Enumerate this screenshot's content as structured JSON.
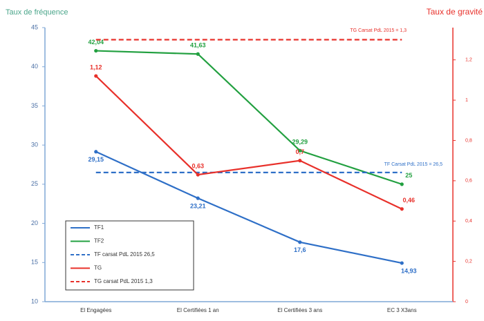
{
  "chart_data": {
    "type": "line",
    "ylabel": "Taux de fréquence",
    "y2label": "Taux de gravité",
    "categories": [
      "El Engagées",
      "El Certifiées 1 an",
      "El Certifiées 3 ans",
      "EC 3 X3ans"
    ],
    "ylim": [
      10,
      45
    ],
    "yticks": [
      10,
      15,
      20,
      25,
      30,
      35,
      40,
      45
    ],
    "y2lim": [
      0,
      1.36
    ],
    "y2ticks": [
      0,
      {
        "value": 0.2,
        "label": "0,2"
      },
      {
        "value": 0.4,
        "label": "0,4"
      },
      {
        "value": 0.6,
        "label": "0,6"
      },
      {
        "value": 0.8,
        "label": "0,8"
      },
      1,
      {
        "value": 1.2,
        "label": "1,2"
      }
    ],
    "series": [
      {
        "name": "TF1",
        "color": "#2e6fc7",
        "values": [
          29.15,
          23.21,
          17.6,
          14.93
        ],
        "value_labels": [
          "29,15",
          "23,21",
          "17,6",
          "14,93"
        ],
        "markers": true
      },
      {
        "name": "TF2",
        "color": "#22a040",
        "values": [
          42.04,
          41.63,
          29.29,
          25
        ],
        "value_labels": [
          "42,04",
          "41,63",
          "29,29",
          "25"
        ],
        "markers": true
      },
      {
        "name": "TF carsat PdL 2015 26,5",
        "color": "#2e6fc7",
        "values": [
          26.5,
          26.5,
          26.5,
          26.5
        ],
        "dashed": true
      },
      {
        "name": "TG",
        "color": "#e8302a",
        "axis": "y2",
        "values": [
          1.12,
          0.63,
          0.7,
          0.46
        ],
        "value_labels": [
          "1,12",
          "0,63",
          "0,7",
          "0,46"
        ],
        "markers": true
      },
      {
        "name": "TG carsat PdL 2015 1,3",
        "color": "#e8302a",
        "axis": "y2",
        "values": [
          1.3,
          1.3,
          1.3,
          1.3
        ],
        "dashed": true
      }
    ],
    "annotations": [
      "TG Carsat PdL 2015 = 1,3",
      "TF Carsat PdL 2015 = 26,5"
    ],
    "legend": "lower left"
  }
}
